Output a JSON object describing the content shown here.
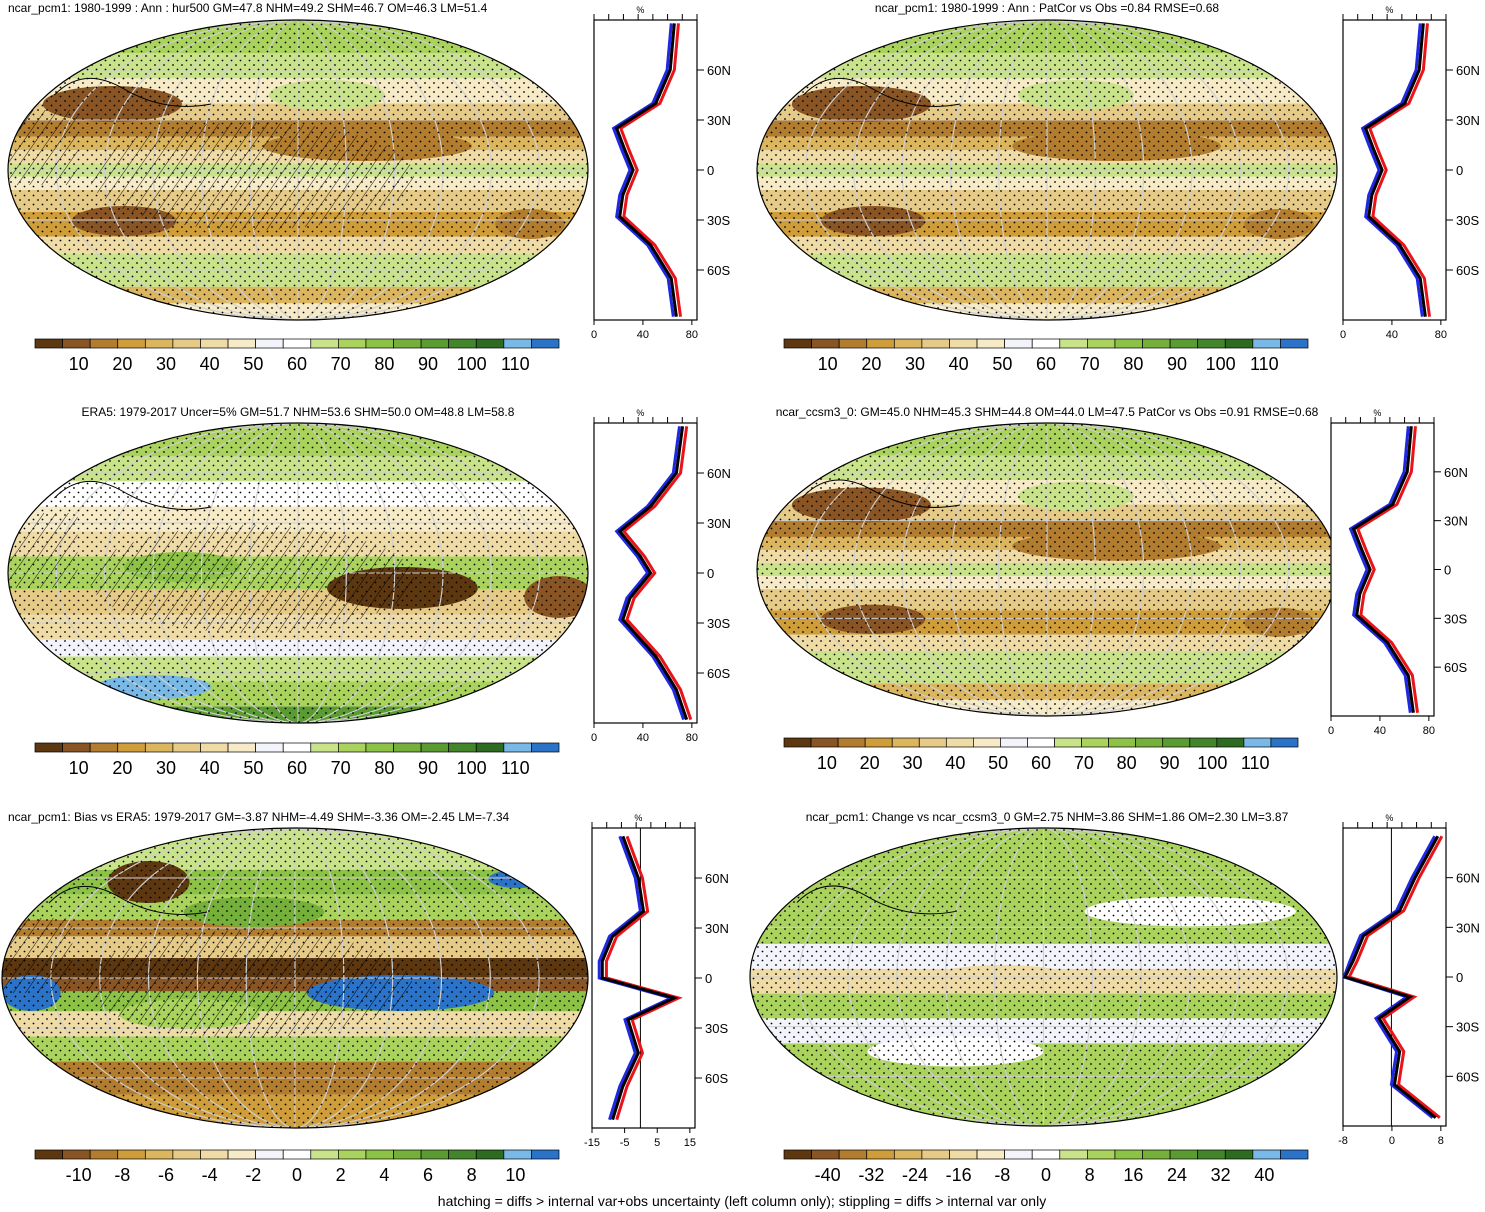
{
  "footer": "hatching = diffs > internal var+obs uncertainty (left column only); stippling = diffs > internal var only",
  "colors": {
    "abs_scale": [
      "#5c3710",
      "#8a5524",
      "#b27d2e",
      "#cf9d3a",
      "#dbb65f",
      "#e6cb88",
      "#efdba6",
      "#f6ebc6",
      "#f3f4fb",
      "#ffffff",
      "#c9e38a",
      "#a9d35c",
      "#8cc246",
      "#74b03a",
      "#5b9c32",
      "#43852a",
      "#2d6b21",
      "#79b9e8",
      "#2a73c8"
    ],
    "diff_scale": [
      "#5c3710",
      "#8a5524",
      "#b27d2e",
      "#cf9d3a",
      "#dbb65f",
      "#e6cb88",
      "#efdba6",
      "#f6ebc6",
      "#f3f4fb",
      "#ffffff",
      "#c9e38a",
      "#a9d35c",
      "#8cc246",
      "#74b03a",
      "#5b9c32",
      "#43852a",
      "#2d6b21",
      "#79b9e8",
      "#2a73c8"
    ],
    "line_model": "#e8141a",
    "line_obs": "#1f28e0",
    "line_mean": "#000000"
  },
  "panels": [
    {
      "title": "ncar_pcm1: 1980-1999 : Ann : hur500 GM=47.8 NHM=49.2 SHM=46.7 OM=46.3 LM=51.4",
      "colorbar_labels": [
        "10",
        "20",
        "30",
        "40",
        "50",
        "60",
        "70",
        "80",
        "90",
        "100",
        "110"
      ],
      "profile_unit": "%",
      "profile_xticks": [
        "0",
        "40",
        "80"
      ],
      "profile_yticks": [
        "60N",
        "30N",
        "0",
        "30S",
        "60S"
      ],
      "map_style": "abs",
      "hatching": true
    },
    {
      "title": "ncar_pcm1: 1980-1999 : Ann : PatCor vs Obs =0.84 RMSE=0.68",
      "colorbar_labels": [
        "10",
        "20",
        "30",
        "40",
        "50",
        "60",
        "70",
        "80",
        "90",
        "100",
        "110"
      ],
      "profile_unit": "%",
      "profile_xticks": [
        "0",
        "40",
        "80"
      ],
      "profile_yticks": [
        "60N",
        "30N",
        "0",
        "30S",
        "60S"
      ],
      "map_style": "abs",
      "hatching": false
    },
    {
      "title": "ERA5: 1979-2017 Uncer=5% GM=51.7 NHM=53.6 SHM=50.0 OM=48.8 LM=58.8",
      "colorbar_labels": [
        "10",
        "20",
        "30",
        "40",
        "50",
        "60",
        "70",
        "80",
        "90",
        "100",
        "110"
      ],
      "profile_unit": "%",
      "profile_xticks": [
        "0",
        "40",
        "80"
      ],
      "profile_yticks": [
        "60N",
        "30N",
        "0",
        "30S",
        "60S"
      ],
      "map_style": "obs",
      "hatching": true
    },
    {
      "title": "ncar_ccsm3_0: GM=45.0 NHM=45.3 SHM=44.8 OM=44.0 LM=47.5 PatCor vs Obs =0.91 RMSE=0.68",
      "colorbar_labels": [
        "10",
        "20",
        "30",
        "40",
        "50",
        "60",
        "70",
        "80",
        "90",
        "100",
        "110"
      ],
      "profile_unit": "%",
      "profile_xticks": [
        "0",
        "40",
        "80"
      ],
      "profile_yticks": [
        "60N",
        "30N",
        "0",
        "30S",
        "60S"
      ],
      "map_style": "abs",
      "hatching": false
    },
    {
      "title": "ncar_pcm1: Bias vs ERA5: 1979-2017 GM=-3.87 NHM=-4.49 SHM=-3.36 OM=-2.45 LM=-7.34",
      "colorbar_labels": [
        "-10",
        "-8",
        "-6",
        "-4",
        "-2",
        "0",
        "2",
        "4",
        "6",
        "8",
        "10"
      ],
      "profile_unit": "%",
      "profile_xticks": [
        "-15",
        "-5",
        "5",
        "15"
      ],
      "profile_yticks": [
        "60N",
        "30N",
        "0",
        "30S",
        "60S"
      ],
      "map_style": "bias",
      "hatching": true
    },
    {
      "title": "ncar_pcm1: Change vs ncar_ccsm3_0 GM=2.75 NHM=3.86 SHM=1.86 OM=2.30 LM=3.87",
      "colorbar_labels": [
        "-40",
        "-32",
        "-24",
        "-16",
        "-8",
        "0",
        "8",
        "16",
        "24",
        "32",
        "40"
      ],
      "profile_unit": "%",
      "profile_xticks": [
        "-8",
        "0",
        "8"
      ],
      "profile_yticks": [
        "60N",
        "30N",
        "0",
        "30S",
        "60S"
      ],
      "map_style": "change",
      "hatching": false
    }
  ]
}
